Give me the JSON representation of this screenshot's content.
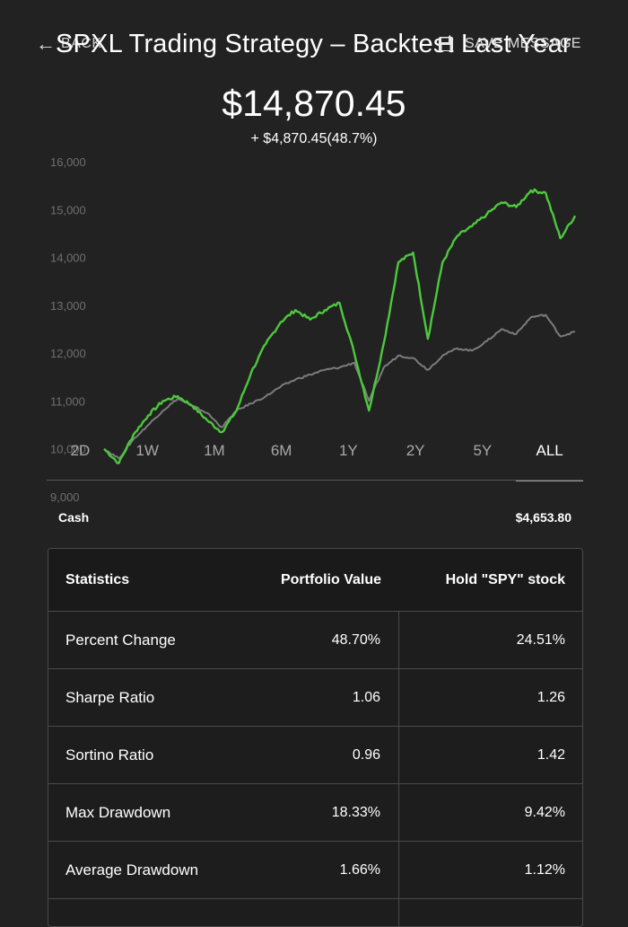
{
  "header": {
    "back_label": "BACK",
    "title": "SPXL Trading Strategy – Backtest Last Year",
    "save_label": "SAVE MESSAGE"
  },
  "summary": {
    "value": "$14,870.45",
    "change": "+ $4,870.45(48.7%)"
  },
  "colors": {
    "strategy": "#4cc93c",
    "benchmark": "#7c7c7c",
    "background": "#222222"
  },
  "chart_data": {
    "type": "line",
    "ylim": [
      9000,
      16000
    ],
    "y_ticks": [
      "16,000",
      "15,000",
      "14,000",
      "13,000",
      "12,000",
      "11,000",
      "10,000",
      "9,000"
    ],
    "grid": false,
    "series": [
      {
        "values": [
          10000,
          9700,
          10300,
          10700,
          11000,
          11100,
          10900,
          10600,
          10350,
          10800,
          11600,
          12200,
          12650,
          12900,
          12700,
          12900,
          13050,
          12000,
          10800,
          12200,
          13900,
          14100,
          12300,
          13900,
          14450,
          14650,
          14900,
          15150,
          15050,
          15400,
          15350,
          14400,
          14870
        ]
      },
      {
        "values": [
          10000,
          9800,
          10200,
          10500,
          10800,
          11050,
          10900,
          10750,
          10450,
          10800,
          10950,
          11100,
          11300,
          11450,
          11550,
          11650,
          11700,
          11800,
          11000,
          11700,
          11950,
          11900,
          11650,
          11950,
          12100,
          12050,
          12250,
          12500,
          12400,
          12750,
          12800,
          12350,
          12451
        ]
      }
    ]
  },
  "ranges": [
    {
      "label": "2D"
    },
    {
      "label": "1W"
    },
    {
      "label": "1M"
    },
    {
      "label": "6M"
    },
    {
      "label": "1Y"
    },
    {
      "label": "2Y"
    },
    {
      "label": "5Y"
    },
    {
      "label": "ALL",
      "active": true
    }
  ],
  "cash": {
    "label": "Cash",
    "value": "$4,653.80"
  },
  "stats": {
    "headers": [
      "Statistics",
      "Portfolio Value",
      "Hold \"SPY\" stock"
    ],
    "rows": [
      {
        "name": "Percent Change",
        "portfolio": "48.70%",
        "hold": "24.51%"
      },
      {
        "name": "Sharpe Ratio",
        "portfolio": "1.06",
        "hold": "1.26"
      },
      {
        "name": "Sortino Ratio",
        "portfolio": "0.96",
        "hold": "1.42"
      },
      {
        "name": "Max Drawdown",
        "portfolio": "18.33%",
        "hold": "9.42%"
      },
      {
        "name": "Average Drawdown",
        "portfolio": "1.66%",
        "hold": "1.12%"
      },
      {
        "name": "",
        "portfolio": "",
        "hold": ""
      }
    ]
  }
}
